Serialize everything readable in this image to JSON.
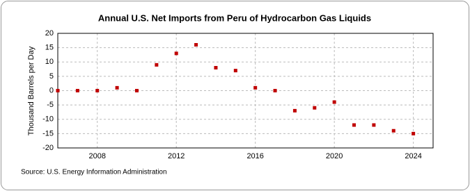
{
  "chart_data": {
    "type": "scatter",
    "title": "Annual U.S. Net Imports from Peru of Hydrocarbon Gas Liquids",
    "y_label": "Thousand Barrels per Day",
    "source": "Source: U.S. Energy Information Administration",
    "x": [
      2006,
      2007,
      2008,
      2009,
      2010,
      2011,
      2012,
      2013,
      2014,
      2015,
      2016,
      2017,
      2018,
      2019,
      2020,
      2021,
      2022,
      2023,
      2024
    ],
    "values": [
      0,
      0,
      0,
      1,
      0,
      9,
      13,
      16,
      8,
      7,
      1,
      0,
      -7,
      -6,
      -4,
      -12,
      -12,
      -14,
      -15
    ],
    "color": "#c00000",
    "xlim": [
      2006,
      2025
    ],
    "xticks": [
      2008,
      2012,
      2016,
      2020,
      2024
    ],
    "ylim": [
      -20,
      20
    ],
    "yticks": [
      -20,
      -15,
      -10,
      -5,
      0,
      5,
      10,
      15,
      20
    ],
    "grid": true
  }
}
